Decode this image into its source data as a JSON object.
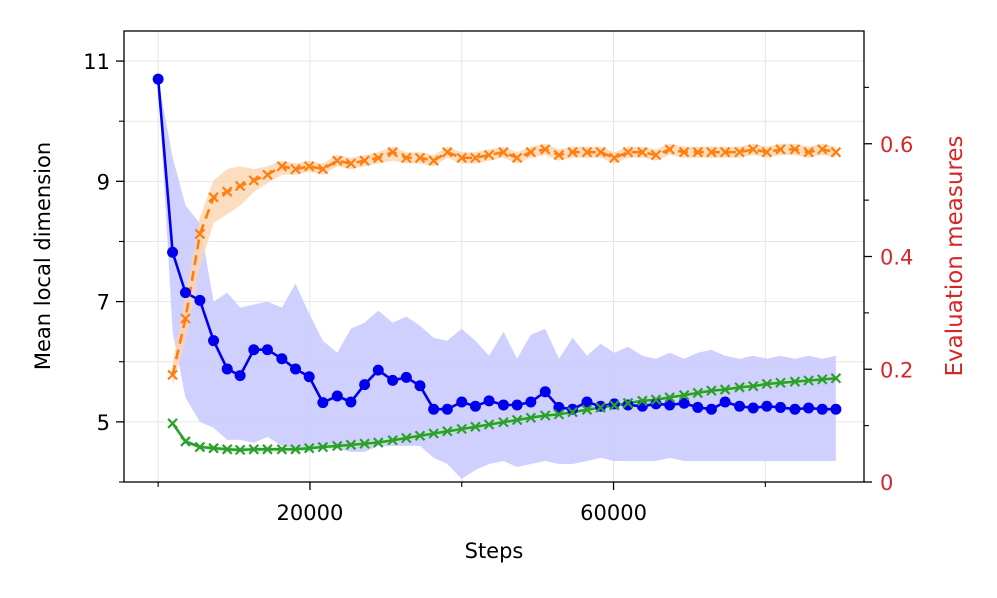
{
  "chart_data": {
    "type": "line",
    "xlabel": "Steps",
    "ylabel_left": "Mean local dimension",
    "ylabel_right": "Evaluation measures",
    "xlim": [
      -4500,
      93000
    ],
    "ylim_left": [
      4.0,
      11.5
    ],
    "ylim_right": [
      0.0,
      0.8
    ],
    "grid": true,
    "x_ticks": [
      20000,
      60000
    ],
    "x_minor_ticks": [
      0,
      40000,
      80000
    ],
    "y_left_ticks": [
      5,
      7,
      9,
      11
    ],
    "y_left_minor_ticks": [
      4,
      6,
      8,
      10
    ],
    "y_right_ticks": [
      0,
      0.2,
      0.4,
      0.6
    ],
    "y_right_minor_ticks": [
      0.1,
      0.3,
      0.5,
      0.7
    ],
    "colors": {
      "local_dimension": "#0000ee",
      "local_dimension_band": "#c8c8ff",
      "orange": "#ff7f0e",
      "orange_band": "#fdd5b0",
      "green": "#2ca02c",
      "green_band": "#c9e8c9",
      "right_axis": "#d62728",
      "grid": "#e6e6e6"
    },
    "series": [
      {
        "axis": "left",
        "marker": "circle",
        "line": "solid",
        "x": [
          0,
          1900,
          3600,
          5500,
          7300,
          9100,
          10800,
          12600,
          14400,
          16300,
          18100,
          19900,
          21700,
          23600,
          25400,
          27200,
          29000,
          30900,
          32700,
          34500,
          36300,
          38100,
          40000,
          41800,
          43600,
          45500,
          47300,
          49100,
          51000,
          52800,
          54600,
          56500,
          58300,
          60100,
          61900,
          63800,
          65600,
          67400,
          69300,
          71100,
          72900,
          74700,
          76600,
          78400,
          80200,
          82000,
          83900,
          85700,
          87500,
          89300
        ],
        "values": [
          10.7,
          7.82,
          7.15,
          7.02,
          6.35,
          5.88,
          5.77,
          6.2,
          6.2,
          6.05,
          5.88,
          5.75,
          5.32,
          5.43,
          5.33,
          5.62,
          5.86,
          5.69,
          5.74,
          5.6,
          5.21,
          5.21,
          5.33,
          5.26,
          5.35,
          5.28,
          5.28,
          5.33,
          5.5,
          5.24,
          5.21,
          5.33,
          5.26,
          5.3,
          5.28,
          5.26,
          5.3,
          5.28,
          5.31,
          5.24,
          5.21,
          5.33,
          5.26,
          5.23,
          5.26,
          5.24,
          5.21,
          5.23,
          5.21,
          5.21
        ],
        "band_low": [
          10.7,
          6.5,
          5.4,
          5.0,
          4.9,
          4.7,
          4.7,
          4.65,
          4.75,
          4.6,
          4.55,
          4.5,
          4.6,
          4.55,
          4.5,
          4.5,
          4.6,
          4.6,
          4.6,
          4.6,
          4.4,
          4.3,
          4.05,
          4.2,
          4.3,
          4.35,
          4.25,
          4.3,
          4.35,
          4.3,
          4.3,
          4.35,
          4.4,
          4.35,
          4.35,
          4.35,
          4.35,
          4.4,
          4.35,
          4.35,
          4.35,
          4.35,
          4.35,
          4.35,
          4.35,
          4.35,
          4.35,
          4.35,
          4.35,
          4.35
        ],
        "band_high": [
          10.7,
          9.4,
          8.6,
          8.3,
          7.0,
          7.15,
          6.9,
          6.95,
          7.0,
          6.9,
          7.3,
          6.8,
          6.35,
          6.15,
          6.55,
          6.65,
          6.85,
          6.65,
          6.75,
          6.6,
          6.4,
          6.35,
          6.55,
          6.35,
          6.1,
          6.5,
          6.05,
          6.45,
          6.55,
          6.05,
          6.4,
          6.1,
          6.3,
          6.15,
          6.25,
          6.1,
          6.05,
          6.15,
          6.05,
          6.15,
          6.2,
          6.1,
          6.05,
          6.1,
          6.05,
          6.1,
          6.05,
          6.1,
          6.05,
          6.1
        ]
      },
      {
        "axis": "right",
        "marker": "x",
        "line": "dashed",
        "x": [
          1900,
          3600,
          5500,
          7300,
          9100,
          10800,
          12600,
          14400,
          16300,
          18100,
          19900,
          21700,
          23600,
          25400,
          27200,
          29000,
          30900,
          32700,
          34500,
          36300,
          38100,
          40000,
          41800,
          43600,
          45500,
          47300,
          49100,
          51000,
          52800,
          54600,
          56500,
          58300,
          60100,
          61900,
          63800,
          65600,
          67400,
          69300,
          71100,
          72900,
          74700,
          76600,
          78400,
          80200,
          82000,
          83900,
          85700,
          87500,
          89300
        ],
        "values": [
          0.19,
          0.29,
          0.44,
          0.505,
          0.515,
          0.525,
          0.535,
          0.545,
          0.56,
          0.555,
          0.56,
          0.555,
          0.57,
          0.565,
          0.57,
          0.575,
          0.585,
          0.575,
          0.575,
          0.57,
          0.585,
          0.575,
          0.575,
          0.58,
          0.585,
          0.575,
          0.585,
          0.59,
          0.58,
          0.585,
          0.585,
          0.585,
          0.575,
          0.585,
          0.585,
          0.58,
          0.59,
          0.585,
          0.585,
          0.585,
          0.585,
          0.585,
          0.59,
          0.585,
          0.59,
          0.59,
          0.585,
          0.59,
          0.585
        ],
        "band_low": [
          0.17,
          0.25,
          0.38,
          0.46,
          0.475,
          0.49,
          0.515,
          0.53,
          0.545,
          0.545,
          0.55,
          0.545,
          0.56,
          0.555,
          0.56,
          0.565,
          0.57,
          0.565,
          0.565,
          0.56,
          0.575,
          0.565,
          0.565,
          0.57,
          0.575,
          0.565,
          0.575,
          0.58,
          0.57,
          0.575,
          0.575,
          0.575,
          0.565,
          0.575,
          0.575,
          0.57,
          0.58,
          0.575,
          0.575,
          0.575,
          0.575,
          0.575,
          0.58,
          0.575,
          0.58,
          0.58,
          0.575,
          0.58,
          0.575
        ],
        "band_high": [
          0.21,
          0.33,
          0.47,
          0.535,
          0.555,
          0.56,
          0.555,
          0.56,
          0.57,
          0.565,
          0.57,
          0.565,
          0.58,
          0.575,
          0.58,
          0.585,
          0.595,
          0.585,
          0.585,
          0.58,
          0.595,
          0.585,
          0.585,
          0.59,
          0.595,
          0.585,
          0.595,
          0.6,
          0.59,
          0.595,
          0.595,
          0.595,
          0.585,
          0.595,
          0.595,
          0.59,
          0.6,
          0.595,
          0.595,
          0.595,
          0.595,
          0.595,
          0.6,
          0.595,
          0.6,
          0.6,
          0.595,
          0.6,
          0.595
        ]
      },
      {
        "axis": "right",
        "marker": "x",
        "line": "solid",
        "x": [
          1900,
          3600,
          5500,
          7300,
          9100,
          10800,
          12600,
          14400,
          16300,
          18100,
          19900,
          21700,
          23600,
          25400,
          27200,
          29000,
          30900,
          32700,
          34500,
          36300,
          38100,
          40000,
          41800,
          43600,
          45500,
          47300,
          49100,
          51000,
          52800,
          54600,
          56500,
          58300,
          60100,
          61900,
          63800,
          65600,
          67400,
          69300,
          71100,
          72900,
          74700,
          76600,
          78400,
          80200,
          82000,
          83900,
          85700,
          87500,
          89300
        ],
        "values": [
          0.104,
          0.072,
          0.062,
          0.06,
          0.058,
          0.057,
          0.058,
          0.058,
          0.058,
          0.058,
          0.06,
          0.062,
          0.064,
          0.066,
          0.068,
          0.07,
          0.074,
          0.078,
          0.082,
          0.086,
          0.09,
          0.094,
          0.098,
          0.102,
          0.106,
          0.11,
          0.114,
          0.118,
          0.12,
          0.124,
          0.128,
          0.132,
          0.136,
          0.14,
          0.144,
          0.146,
          0.15,
          0.154,
          0.158,
          0.162,
          0.164,
          0.168,
          0.17,
          0.174,
          0.176,
          0.178,
          0.18,
          0.182,
          0.184
        ],
        "band_low": [
          0.1,
          0.068,
          0.058,
          0.056,
          0.054,
          0.053,
          0.054,
          0.054,
          0.054,
          0.054,
          0.056,
          0.058,
          0.06,
          0.062,
          0.064,
          0.066,
          0.07,
          0.074,
          0.078,
          0.082,
          0.086,
          0.09,
          0.094,
          0.098,
          0.102,
          0.106,
          0.11,
          0.114,
          0.116,
          0.12,
          0.124,
          0.128,
          0.132,
          0.136,
          0.14,
          0.142,
          0.146,
          0.15,
          0.154,
          0.158,
          0.16,
          0.164,
          0.166,
          0.17,
          0.172,
          0.174,
          0.176,
          0.178,
          0.18
        ],
        "band_high": [
          0.108,
          0.076,
          0.066,
          0.064,
          0.062,
          0.061,
          0.062,
          0.062,
          0.062,
          0.062,
          0.064,
          0.066,
          0.068,
          0.07,
          0.072,
          0.074,
          0.078,
          0.082,
          0.086,
          0.09,
          0.094,
          0.098,
          0.102,
          0.106,
          0.11,
          0.114,
          0.118,
          0.122,
          0.124,
          0.128,
          0.132,
          0.136,
          0.14,
          0.144,
          0.148,
          0.15,
          0.154,
          0.158,
          0.162,
          0.166,
          0.168,
          0.172,
          0.174,
          0.178,
          0.18,
          0.182,
          0.184,
          0.186,
          0.188
        ]
      }
    ]
  }
}
